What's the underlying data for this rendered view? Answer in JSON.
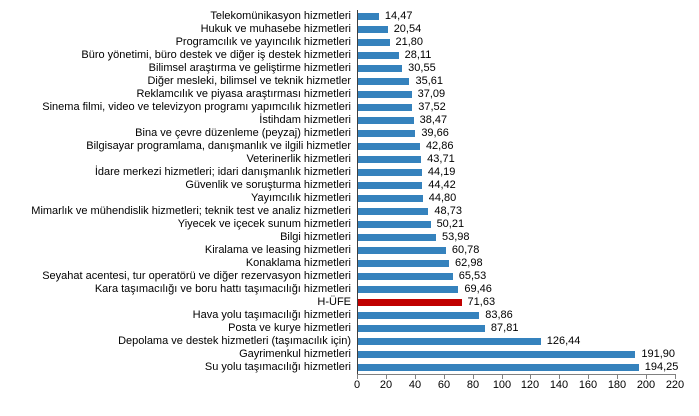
{
  "chart_data": {
    "type": "bar",
    "orientation": "horizontal",
    "title": "",
    "xlabel": "",
    "ylabel": "",
    "xlim": [
      0,
      220
    ],
    "x_ticks": [
      "0",
      "20",
      "40",
      "60",
      "80",
      "100",
      "120",
      "140",
      "160",
      "180",
      "200",
      "220"
    ],
    "grid": false,
    "legend": "none",
    "bar_color": "#3582BD",
    "highlight_color": "#C00000",
    "highlight_category": "H-ÜFE",
    "categories": [
      "Telekomünikasyon hizmetleri",
      "Hukuk ve muhasebe hizmetleri",
      "Programcılık ve yayıncılık hizmetleri",
      "Büro yönetimi, büro destek ve diğer iş destek hizmetleri",
      "Bilimsel araştırma ve geliştirme hizmetleri",
      "Diğer mesleki, bilimsel ve teknik hizmetler",
      "Reklamcılık ve piyasa araştırması hizmetleri",
      "Sinema filmi, video ve televizyon programı yapımcılık hizmetleri",
      "İstihdam hizmetleri",
      "Bina ve çevre düzenleme (peyzaj) hizmetleri",
      "Bilgisayar programlama, danışmanlık ve ilgili hizmetler",
      "Veterinerlik hizmetleri",
      "İdare merkezi hizmetleri; idari danışmanlık hizmetleri",
      "Güvenlik ve soruşturma hizmetleri",
      "Yayımcılık hizmetleri",
      "Mimarlık ve mühendislik hizmetleri; teknik test ve analiz hizmetleri",
      "Yiyecek ve içecek sunum hizmetleri",
      "Bilgi hizmetleri",
      "Kiralama ve leasing hizmetleri",
      "Konaklama hizmetleri",
      "Seyahat acentesi, tur operatörü ve diğer rezervasyon hizmetleri",
      "Kara taşımacılığı ve boru hattı taşımacılığı hizmetleri",
      "H-ÜFE",
      "Hava yolu taşımacılığı hizmetleri",
      "Posta ve kurye hizmetleri",
      "Depolama ve destek hizmetleri (taşımacılık için)",
      "Gayrimenkul hizmetleri",
      "Su yolu taşımacılığı hizmetleri"
    ],
    "values": [
      14.47,
      20.54,
      21.8,
      28.11,
      30.55,
      35.61,
      37.09,
      37.52,
      38.47,
      39.66,
      42.86,
      43.71,
      44.19,
      44.42,
      44.8,
      48.73,
      50.21,
      53.98,
      60.78,
      62.98,
      65.53,
      69.46,
      71.63,
      83.86,
      87.81,
      126.44,
      191.9,
      194.25
    ],
    "value_labels": [
      "14,47",
      "20,54",
      "21,80",
      "28,11",
      "30,55",
      "35,61",
      "37,09",
      "37,52",
      "38,47",
      "39,66",
      "42,86",
      "43,71",
      "44,19",
      "44,42",
      "44,80",
      "48,73",
      "50,21",
      "53,98",
      "60,78",
      "62,98",
      "65,53",
      "69,46",
      "71,63",
      "83,86",
      "87,81",
      "126,44",
      "191,90",
      "194,25"
    ]
  }
}
